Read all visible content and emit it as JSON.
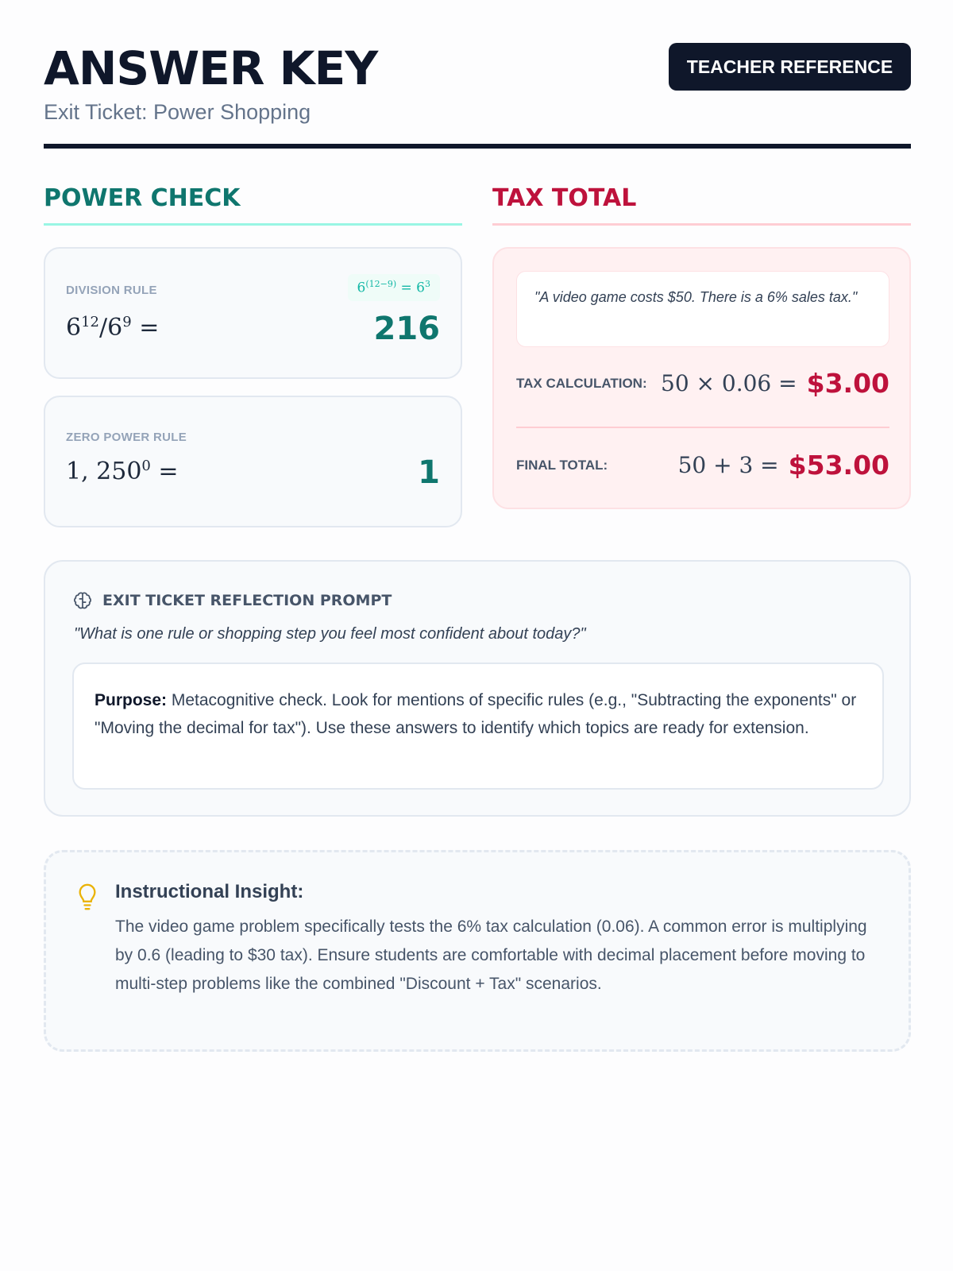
{
  "header": {
    "title": "ANSWER KEY",
    "subtitle": "Exit Ticket: Power Shopping",
    "badge": "TEACHER REFERENCE"
  },
  "power_check": {
    "heading": "POWER CHECK",
    "division": {
      "label": "DIVISION RULE",
      "hint_base": "6",
      "hint_exp": "(12−9)",
      "hint_eq": " = 6",
      "hint_exp2": "3",
      "expr_base1": "6",
      "expr_exp1": "12",
      "expr_mid": "/6",
      "expr_exp2": "9",
      "expr_eq": " =",
      "answer": "216"
    },
    "zero": {
      "label": "ZERO POWER RULE",
      "expr_base": "1, 250",
      "expr_exp": "0",
      "expr_eq": " =",
      "answer": "1"
    }
  },
  "tax_total": {
    "heading": "TAX TOTAL",
    "quote": "\"A video game costs $50. There is a 6% sales tax.\"",
    "tax_row": {
      "label": "TAX CALCULATION:",
      "expr": "50 × 0.06 =",
      "value": "$3.00"
    },
    "final_row": {
      "label": "FINAL TOTAL:",
      "expr": "50 + 3 =",
      "value": "$53.00"
    }
  },
  "reflection": {
    "heading": "EXIT TICKET REFLECTION PROMPT",
    "icon": "brain-icon",
    "question": "\"What is one rule or shopping step you feel most confident about today?\"",
    "purpose_label": "Purpose:",
    "purpose_text": " Metacognitive check. Look for mentions of specific rules (e.g., \"Subtracting the exponents\" or \"Moving the decimal for tax\"). Use these answers to identify which topics are ready for extension."
  },
  "insight": {
    "icon": "lightbulb-icon",
    "title": "Instructional Insight:",
    "text": "The video game problem specifically tests the 6% tax calculation (0.06). A common error is multiplying by 0.6 (leading to $30 tax). Ensure students are comfortable with decimal placement before moving to multi-step problems like the combined \"Discount + Tax\" scenarios."
  },
  "colors": {
    "primary": "#0f172a",
    "green": "#0f766e",
    "red": "#be123c",
    "accent_yellow": "#eab308"
  }
}
